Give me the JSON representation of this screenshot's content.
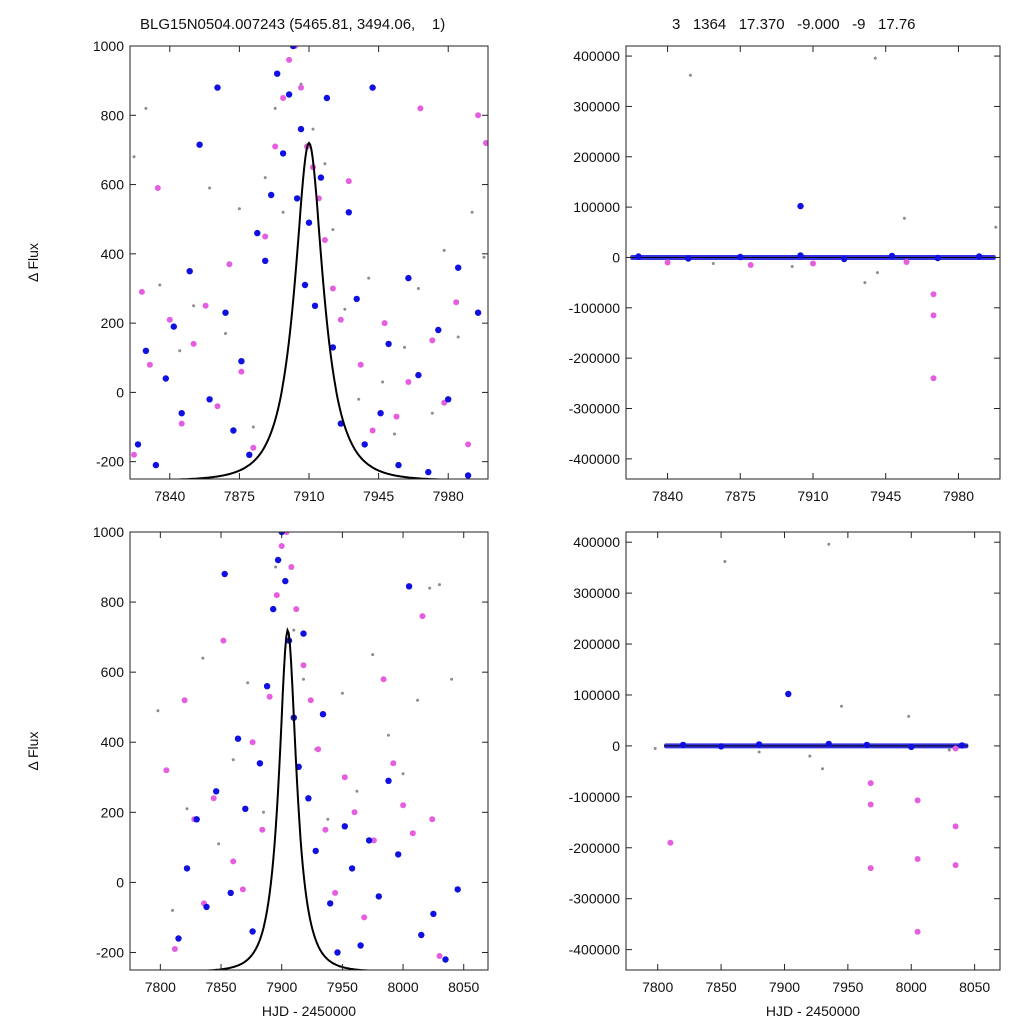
{
  "header": {
    "left": "BLG15N0504.007243 (5465.81, 3494.06,    1)",
    "right": "3   1364   17.370   -9.000   -9   17.76"
  },
  "colors": {
    "gray": "#8c8c8c",
    "magenta": "#e65ee0",
    "blue": "#1010e0",
    "model": "#000000"
  },
  "chart_data": [
    {
      "type": "scatter",
      "xlim": [
        7820,
        8000
      ],
      "ylim": [
        -250,
        1000
      ],
      "xticks": [
        7840,
        7875,
        7910,
        7945,
        7980
      ],
      "yticks": [
        -200,
        0,
        200,
        400,
        600,
        800,
        1000
      ],
      "xlabel": "",
      "ylabel": "Δ Flux",
      "model": {
        "t0": 7910,
        "peak": 720,
        "tE": 15,
        "base": -255
      },
      "series": [
        {
          "name": "",
          "color": "gray",
          "x": [
            7822,
            7828,
            7835,
            7845,
            7852,
            7860,
            7868,
            7875,
            7882,
            7888,
            7893,
            7897,
            7902,
            7906,
            7912,
            7918,
            7922,
            7928,
            7935,
            7940,
            7947,
            7953,
            7958,
            7965,
            7972,
            7978,
            7985,
            7992,
            7998
          ],
          "y": [
            680,
            820,
            310,
            120,
            250,
            590,
            170,
            530,
            -100,
            620,
            820,
            520,
            1000,
            890,
            760,
            660,
            470,
            240,
            -20,
            330,
            30,
            -120,
            130,
            300,
            -60,
            410,
            160,
            520,
            390
          ]
        },
        {
          "name": "",
          "color": "magenta",
          "x": [
            7822,
            7826,
            7830,
            7834,
            7840,
            7846,
            7852,
            7858,
            7864,
            7870,
            7876,
            7882,
            7888,
            7893,
            7897,
            7900,
            7903,
            7906,
            7909,
            7912,
            7915,
            7918,
            7922,
            7926,
            7930,
            7936,
            7942,
            7948,
            7954,
            7960,
            7966,
            7972,
            7978,
            7984,
            7990,
            7995,
            7999
          ],
          "y": [
            -180,
            290,
            80,
            590,
            210,
            -90,
            140,
            250,
            -40,
            370,
            60,
            -160,
            450,
            710,
            850,
            960,
            1000,
            880,
            710,
            650,
            560,
            440,
            300,
            210,
            610,
            80,
            -110,
            200,
            -70,
            30,
            820,
            150,
            -30,
            260,
            -150,
            800,
            720
          ]
        },
        {
          "name": "",
          "color": "blue",
          "x": [
            7824,
            7828,
            7833,
            7838,
            7842,
            7846,
            7850,
            7855,
            7860,
            7864,
            7868,
            7872,
            7876,
            7880,
            7884,
            7888,
            7891,
            7894,
            7897,
            7900,
            7902,
            7904,
            7906,
            7908,
            7910,
            7913,
            7916,
            7919,
            7922,
            7926,
            7930,
            7934,
            7938,
            7942,
            7946,
            7950,
            7955,
            7960,
            7965,
            7970,
            7975,
            7980,
            7985,
            7990,
            7995
          ],
          "y": [
            -150,
            120,
            -210,
            40,
            190,
            -60,
            350,
            715,
            -20,
            880,
            230,
            -110,
            90,
            -180,
            460,
            380,
            570,
            920,
            690,
            860,
            1000,
            560,
            760,
            310,
            490,
            250,
            620,
            850,
            130,
            -90,
            520,
            270,
            -150,
            880,
            -60,
            140,
            -210,
            330,
            50,
            -230,
            180,
            -20,
            360,
            -240,
            230
          ]
        }
      ]
    },
    {
      "type": "scatter",
      "xlim": [
        7820,
        8000
      ],
      "ylim": [
        -440000,
        420000
      ],
      "xticks": [
        7840,
        7875,
        7910,
        7945,
        7980
      ],
      "yticks": [
        -400000,
        -300000,
        -200000,
        -100000,
        0,
        100000,
        200000,
        300000,
        400000
      ],
      "xlabel": "",
      "ylabel": "",
      "band": {
        "from": 7822,
        "to": 7998,
        "value": 0
      },
      "series": [
        {
          "name": "",
          "color": "gray",
          "x": [
            7850,
            7851,
            7940,
            7941,
            7954,
            7998,
            7862,
            7900,
            7935
          ],
          "y": [
            425000,
            362000,
            396000,
            -30000,
            78000,
            60000,
            -12000,
            -18000,
            -50000
          ]
        },
        {
          "name": "",
          "color": "magenta",
          "x": [
            7968,
            7968,
            7968,
            7880,
            7910,
            7955,
            7840
          ],
          "y": [
            -73000,
            -115000,
            -240000,
            -15000,
            -12000,
            -9000,
            -10000
          ]
        },
        {
          "name": "",
          "color": "blue",
          "x": [
            7904,
            7826,
            7850,
            7875,
            7904,
            7925,
            7948,
            7970,
            7990
          ],
          "y": [
            102000,
            2000,
            -2000,
            1000,
            4000,
            -3000,
            3000,
            -1000,
            2000
          ]
        }
      ]
    },
    {
      "type": "scatter",
      "xlim": [
        7775,
        8070
      ],
      "ylim": [
        -250,
        1000
      ],
      "xticks": [
        7800,
        7850,
        7900,
        7950,
        8000,
        8050
      ],
      "yticks": [
        -200,
        0,
        200,
        400,
        600,
        800,
        1000
      ],
      "xlabel": "HJD - 2450000",
      "ylabel": "Δ Flux",
      "model": {
        "t0": 7905,
        "peak": 720,
        "tE": 15,
        "base": -255
      },
      "series": [
        {
          "name": "",
          "color": "gray",
          "x": [
            7798,
            7810,
            7822,
            7835,
            7848,
            7860,
            7872,
            7885,
            7895,
            7902,
            7910,
            7918,
            7928,
            7938,
            7950,
            7962,
            7975,
            7988,
            8000,
            8012,
            8022,
            8030,
            8040
          ],
          "y": [
            490,
            -80,
            210,
            640,
            110,
            350,
            570,
            200,
            900,
            1000,
            720,
            580,
            380,
            180,
            540,
            260,
            650,
            420,
            310,
            520,
            840,
            850,
            580
          ]
        },
        {
          "name": "",
          "color": "magenta",
          "x": [
            7805,
            7812,
            7820,
            7828,
            7836,
            7844,
            7852,
            7860,
            7868,
            7876,
            7884,
            7890,
            7896,
            7900,
            7904,
            7908,
            7912,
            7918,
            7924,
            7930,
            7936,
            7944,
            7952,
            7960,
            7968,
            7976,
            7984,
            7992,
            8000,
            8008,
            8016,
            8024,
            8030
          ],
          "y": [
            320,
            -190,
            520,
            180,
            -60,
            240,
            690,
            60,
            -20,
            400,
            150,
            530,
            820,
            960,
            1000,
            900,
            780,
            620,
            520,
            380,
            150,
            -30,
            300,
            200,
            -100,
            120,
            580,
            340,
            220,
            140,
            760,
            180,
            -210
          ]
        },
        {
          "name": "",
          "color": "blue",
          "x": [
            7815,
            7822,
            7830,
            7838,
            7846,
            7853,
            7858,
            7864,
            7870,
            7876,
            7882,
            7888,
            7893,
            7897,
            7900,
            7903,
            7906,
            7910,
            7914,
            7918,
            7922,
            7928,
            7934,
            7940,
            7946,
            7952,
            7958,
            7965,
            7972,
            7980,
            7988,
            7996,
            8005,
            8015,
            8025,
            8035,
            8045
          ],
          "y": [
            -160,
            40,
            180,
            -70,
            260,
            880,
            -30,
            410,
            210,
            -140,
            340,
            560,
            780,
            920,
            1000,
            860,
            690,
            470,
            330,
            710,
            240,
            90,
            480,
            -60,
            -200,
            160,
            40,
            -180,
            120,
            -40,
            290,
            80,
            845,
            -150,
            -90,
            -220,
            -20
          ]
        }
      ]
    },
    {
      "type": "scatter",
      "xlim": [
        7775,
        8070
      ],
      "ylim": [
        -440000,
        420000
      ],
      "xticks": [
        7800,
        7850,
        7900,
        7950,
        8000,
        8050
      ],
      "yticks": [
        -400000,
        -300000,
        -200000,
        -100000,
        0,
        100000,
        200000,
        300000,
        400000
      ],
      "xlabel": "HJD - 2450000",
      "ylabel": "",
      "band": {
        "from": 7805,
        "to": 8045,
        "value": 0
      },
      "series": [
        {
          "name": "",
          "color": "gray",
          "x": [
            7852,
            7853,
            7935,
            7945,
            7998,
            7798,
            7880,
            7920,
            7930,
            8030
          ],
          "y": [
            425000,
            362000,
            396000,
            78000,
            58000,
            -5000,
            -12000,
            -20000,
            -45000,
            -8000
          ]
        },
        {
          "name": "",
          "color": "magenta",
          "x": [
            7810,
            7968,
            7968,
            7968,
            8005,
            8005,
            8005,
            8035,
            8035,
            8035
          ],
          "y": [
            -190000,
            -73000,
            -115000,
            -240000,
            -107000,
            -222000,
            -365000,
            -158000,
            -234000,
            -5000
          ]
        },
        {
          "name": "",
          "color": "blue",
          "x": [
            7903,
            7820,
            7850,
            7880,
            7935,
            7965,
            8000,
            8040
          ],
          "y": [
            102000,
            2000,
            -1000,
            3000,
            4000,
            2000,
            -2000,
            1000
          ]
        }
      ]
    }
  ]
}
